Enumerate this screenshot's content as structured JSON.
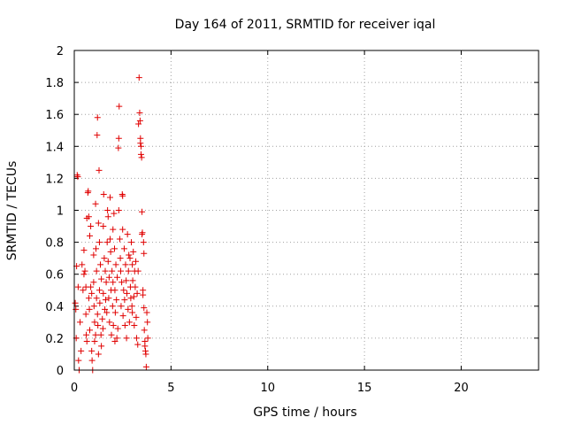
{
  "chart_data": {
    "type": "scatter",
    "title": "Day 164 of 2011, SRMTID for receiver iqal",
    "xlabel": "GPS time / hours",
    "ylabel": "SRMTID / TECUs",
    "xlim": [
      0,
      24
    ],
    "ylim": [
      0,
      2
    ],
    "xticks": [
      0,
      5,
      10,
      15,
      20
    ],
    "yticks": [
      0,
      0.2,
      0.4,
      0.6,
      0.8,
      1,
      1.2,
      1.4,
      1.6,
      1.8,
      2
    ],
    "xtick_labels": [
      "0",
      "5",
      "10",
      "15",
      "20"
    ],
    "ytick_labels": [
      "0",
      "0.2",
      "0.4",
      "0.6",
      "0.8",
      "1",
      "1.2",
      "1.4",
      "1.6",
      "1.8",
      "2"
    ],
    "grid": true,
    "marker": "+",
    "color": "#e00000",
    "series": [
      {
        "points": [
          [
            0.05,
            0.42
          ],
          [
            0.08,
            0.38
          ],
          [
            0.1,
            0.2
          ],
          [
            0.12,
            0.65
          ],
          [
            0.15,
            1.22
          ],
          [
            0.18,
            1.21
          ],
          [
            0.2,
            0.52
          ],
          [
            0.22,
            0.06
          ],
          [
            0.25,
            0.0
          ],
          [
            0.3,
            0.3
          ],
          [
            0.35,
            0.12
          ],
          [
            0.4,
            0.66
          ],
          [
            0.45,
            0.5
          ],
          [
            0.5,
            0.75
          ],
          [
            0.5,
            0.6
          ],
          [
            0.55,
            0.62
          ],
          [
            0.6,
            0.52
          ],
          [
            0.6,
            0.35
          ],
          [
            0.62,
            0.22
          ],
          [
            0.65,
            0.95
          ],
          [
            0.65,
            0.18
          ],
          [
            0.7,
            1.11
          ],
          [
            0.72,
            1.12
          ],
          [
            0.75,
            0.96
          ],
          [
            0.75,
            0.45
          ],
          [
            0.78,
            0.38
          ],
          [
            0.8,
            0.25
          ],
          [
            0.8,
            0.84
          ],
          [
            0.85,
            0.9
          ],
          [
            0.85,
            0.52
          ],
          [
            0.9,
            0.48
          ],
          [
            0.9,
            0.12
          ],
          [
            0.92,
            0.06
          ],
          [
            0.95,
            0.0
          ],
          [
            1.0,
            0.72
          ],
          [
            1.0,
            0.55
          ],
          [
            1.02,
            0.4
          ],
          [
            1.05,
            0.3
          ],
          [
            1.05,
            0.18
          ],
          [
            1.1,
            1.04
          ],
          [
            1.1,
            0.22
          ],
          [
            1.12,
            0.76
          ],
          [
            1.15,
            0.62
          ],
          [
            1.15,
            0.45
          ],
          [
            1.18,
            1.47
          ],
          [
            1.2,
            1.58
          ],
          [
            1.2,
            0.35
          ],
          [
            1.22,
            0.28
          ],
          [
            1.25,
            0.1
          ],
          [
            1.25,
            0.92
          ],
          [
            1.28,
            1.25
          ],
          [
            1.3,
            0.8
          ],
          [
            1.3,
            0.5
          ],
          [
            1.32,
            0.42
          ],
          [
            1.35,
            0.66
          ],
          [
            1.38,
            0.22
          ],
          [
            1.4,
            0.15
          ],
          [
            1.4,
            0.57
          ],
          [
            1.45,
            0.32
          ],
          [
            1.48,
            0.26
          ],
          [
            1.5,
            0.9
          ],
          [
            1.5,
            0.48
          ],
          [
            1.52,
            1.1
          ],
          [
            1.55,
            0.7
          ],
          [
            1.58,
            0.38
          ],
          [
            1.6,
            0.62
          ],
          [
            1.62,
            0.44
          ],
          [
            1.65,
            0.55
          ],
          [
            1.68,
            0.36
          ],
          [
            1.7,
            0.8
          ],
          [
            1.72,
            1.0
          ],
          [
            1.75,
            0.96
          ],
          [
            1.75,
            0.68
          ],
          [
            1.78,
            0.45
          ],
          [
            1.8,
            0.58
          ],
          [
            1.82,
            0.3
          ],
          [
            1.85,
            1.08
          ],
          [
            1.85,
            0.82
          ],
          [
            1.88,
            0.74
          ],
          [
            1.9,
            0.5
          ],
          [
            1.92,
            0.22
          ],
          [
            1.95,
            0.62
          ],
          [
            1.98,
            0.4
          ],
          [
            2.0,
            0.88
          ],
          [
            2.0,
            0.55
          ],
          [
            2.02,
            0.28
          ],
          [
            2.05,
            0.98
          ],
          [
            2.08,
            0.76
          ],
          [
            2.1,
            0.18
          ],
          [
            2.1,
            0.5
          ],
          [
            2.12,
            0.36
          ],
          [
            2.15,
            0.66
          ],
          [
            2.18,
            0.44
          ],
          [
            2.2,
            0.2
          ],
          [
            2.22,
            0.58
          ],
          [
            2.25,
            0.26
          ],
          [
            2.28,
            1.39
          ],
          [
            2.3,
            1.45
          ],
          [
            2.3,
            1.0
          ],
          [
            2.32,
            1.65
          ],
          [
            2.35,
            0.82
          ],
          [
            2.38,
            0.7
          ],
          [
            2.4,
            0.62
          ],
          [
            2.42,
            0.4
          ],
          [
            2.45,
            0.55
          ],
          [
            2.48,
            1.1
          ],
          [
            2.5,
            1.09
          ],
          [
            2.5,
            0.88
          ],
          [
            2.52,
            0.34
          ],
          [
            2.55,
            0.5
          ],
          [
            2.58,
            0.76
          ],
          [
            2.6,
            0.44
          ],
          [
            2.62,
            0.28
          ],
          [
            2.65,
            0.66
          ],
          [
            2.68,
            0.56
          ],
          [
            2.7,
            0.2
          ],
          [
            2.72,
            0.48
          ],
          [
            2.75,
            0.85
          ],
          [
            2.78,
            0.38
          ],
          [
            2.8,
            0.62
          ],
          [
            2.82,
            0.72
          ],
          [
            2.85,
            0.3
          ],
          [
            2.88,
            0.7
          ],
          [
            2.9,
            0.52
          ],
          [
            2.92,
            0.45
          ],
          [
            2.95,
            0.8
          ],
          [
            2.98,
            0.4
          ],
          [
            3.0,
            0.36
          ],
          [
            3.0,
            0.66
          ],
          [
            3.02,
            0.56
          ],
          [
            3.05,
            0.74
          ],
          [
            3.08,
            0.46
          ],
          [
            3.1,
            0.28
          ],
          [
            3.12,
            0.62
          ],
          [
            3.15,
            0.52
          ],
          [
            3.18,
            0.68
          ],
          [
            3.2,
            0.33
          ],
          [
            3.22,
            0.2
          ],
          [
            3.25,
            0.48
          ],
          [
            3.28,
            0.16
          ],
          [
            3.3,
            0.62
          ],
          [
            3.32,
            1.54
          ],
          [
            3.35,
            1.83
          ],
          [
            3.38,
            1.61
          ],
          [
            3.4,
            1.56
          ],
          [
            3.42,
            1.45
          ],
          [
            3.42,
            1.42
          ],
          [
            3.45,
            1.4
          ],
          [
            3.45,
            1.35
          ],
          [
            3.48,
            1.33
          ],
          [
            3.5,
            0.99
          ],
          [
            3.5,
            0.85
          ],
          [
            3.52,
            0.86
          ],
          [
            3.55,
            0.5
          ],
          [
            3.55,
            0.47
          ],
          [
            3.58,
            0.8
          ],
          [
            3.6,
            0.73
          ],
          [
            3.6,
            0.39
          ],
          [
            3.62,
            0.25
          ],
          [
            3.65,
            0.18
          ],
          [
            3.65,
            0.15
          ],
          [
            3.68,
            0.12
          ],
          [
            3.7,
            0.1
          ],
          [
            3.72,
            0.02
          ],
          [
            3.75,
            0.36
          ],
          [
            3.78,
            0.3
          ],
          [
            3.8,
            0.2
          ]
        ]
      }
    ]
  }
}
